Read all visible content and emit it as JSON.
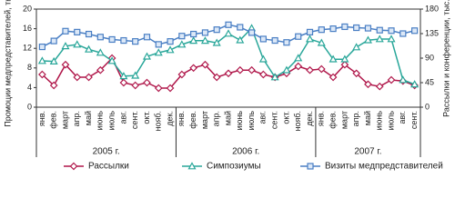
{
  "chart_data": {
    "type": "line",
    "groups": [
      {
        "name": "2005 г.",
        "categories": [
          "янв.",
          "фев.",
          "март",
          "апр.",
          "май",
          "июнь",
          "июль",
          "авг.",
          "сент.",
          "окт.",
          "нояб.",
          "дек."
        ]
      },
      {
        "name": "2006 г.",
        "categories": [
          "янв.",
          "фев.",
          "март",
          "апр.",
          "май",
          "июнь",
          "июль",
          "авг.",
          "сент.",
          "окт.",
          "нояб.",
          "дек."
        ]
      },
      {
        "name": "2007 г.",
        "categories": [
          "янв.",
          "фев.",
          "март",
          "апр.",
          "май",
          "июнь",
          "июль",
          "авг.",
          "сент."
        ]
      }
    ],
    "y_label": "Промоции медпредставителей, тыс.",
    "y2_label": "Рассылки и конференции, тыс.",
    "ylim": [
      0,
      20
    ],
    "yticks": [
      0,
      4,
      8,
      12,
      16,
      20
    ],
    "y2lim": [
      0,
      180
    ],
    "y2ticks": [
      0,
      45,
      90,
      135,
      180
    ],
    "series": [
      {
        "name": "Рассылки",
        "color": "#b0174a",
        "marker": "diamond",
        "axis": "y2",
        "values": [
          60,
          40,
          78,
          55,
          55,
          68,
          90,
          45,
          40,
          45,
          35,
          35,
          60,
          72,
          78,
          55,
          62,
          68,
          68,
          60,
          55,
          62,
          75,
          68,
          70,
          55,
          78,
          62,
          42,
          38,
          50,
          48,
          40
        ]
      },
      {
        "name": "Симпозиумы",
        "color": "#2aa79a",
        "marker": "triangle",
        "axis": "y2",
        "values": [
          85,
          84,
          112,
          115,
          106,
          100,
          85,
          57,
          58,
          93,
          100,
          105,
          115,
          122,
          122,
          118,
          135,
          123,
          145,
          88,
          55,
          68,
          90,
          125,
          118,
          88,
          88,
          110,
          123,
          125,
          125,
          50,
          42
        ]
      },
      {
        "name": "Визиты медпредставителей",
        "color": "#4a7fc4",
        "marker": "square",
        "axis": "y",
        "values": [
          12.3,
          13.5,
          15.5,
          15.3,
          14.9,
          14.3,
          13.8,
          13.6,
          13.4,
          14.3,
          12.8,
          13.4,
          14.5,
          14.9,
          15.2,
          15.8,
          16.8,
          16.3,
          15.2,
          13.9,
          13.6,
          13.2,
          14.4,
          15.3,
          15.8,
          16.0,
          16.4,
          16.2,
          16.1,
          15.7,
          15.6,
          15.0,
          15.6
        ]
      }
    ]
  }
}
